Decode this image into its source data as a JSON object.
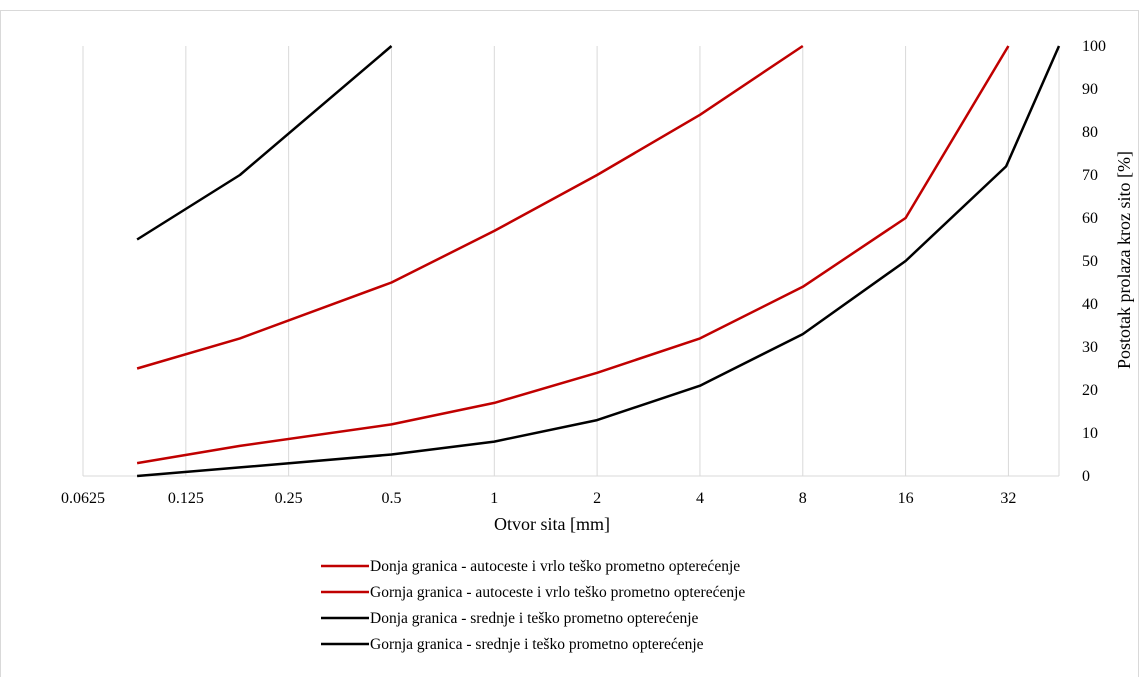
{
  "chart_data": {
    "type": "line",
    "xlabel": "Otvor sita [mm]",
    "ylabel": "Postotak prolaza kroz sito [%]",
    "x_scale": "log2",
    "xlim": [
      0.0625,
      45
    ],
    "ylim": [
      0,
      100
    ],
    "x_ticks": [
      0.0625,
      0.125,
      0.25,
      0.5,
      1,
      2,
      4,
      8,
      16,
      32
    ],
    "x_tick_labels": [
      "0.0625",
      "0.125",
      "0.25",
      "0.5",
      "1",
      "2",
      "4",
      "8",
      "16",
      "32"
    ],
    "y_ticks": [
      0,
      10,
      20,
      30,
      40,
      50,
      60,
      70,
      80,
      90,
      100
    ],
    "y_tick_labels": [
      "0",
      "10",
      "20",
      "30",
      "40",
      "50",
      "60",
      "70",
      "80",
      "90",
      "100"
    ],
    "y_axis_position": "right",
    "grid": {
      "vertical": true,
      "horizontal": false
    },
    "legend_position": "bottom",
    "series": [
      {
        "name": "Donja granica - autoceste i vrlo teško prometno opterećenje",
        "color": "#c00000",
        "x": [
          0.09,
          0.18,
          0.5,
          1,
          2,
          4,
          8,
          16,
          32
        ],
        "y": [
          3,
          7,
          12,
          17,
          24,
          32,
          44,
          60,
          100
        ]
      },
      {
        "name": "Gornja granica -  autoceste i vrlo teško prometno opterećenje",
        "color": "#c00000",
        "x": [
          0.09,
          0.18,
          0.5,
          1,
          2,
          4,
          8
        ],
        "y": [
          25,
          32,
          45,
          57,
          70,
          84,
          100
        ]
      },
      {
        "name": "Donja granica - srednje i  teško prometno opterećenje",
        "color": "#000000",
        "x": [
          0.09,
          0.18,
          0.5,
          1,
          2,
          4,
          8,
          16,
          31.5,
          45
        ],
        "y": [
          0,
          2,
          5,
          8,
          13,
          21,
          33,
          50,
          72,
          100
        ]
      },
      {
        "name": "Gornja granica - srednje i teško prometno opterećenje",
        "color": "#000000",
        "x": [
          0.09,
          0.18,
          0.5
        ],
        "y": [
          55,
          70,
          100
        ]
      }
    ]
  }
}
